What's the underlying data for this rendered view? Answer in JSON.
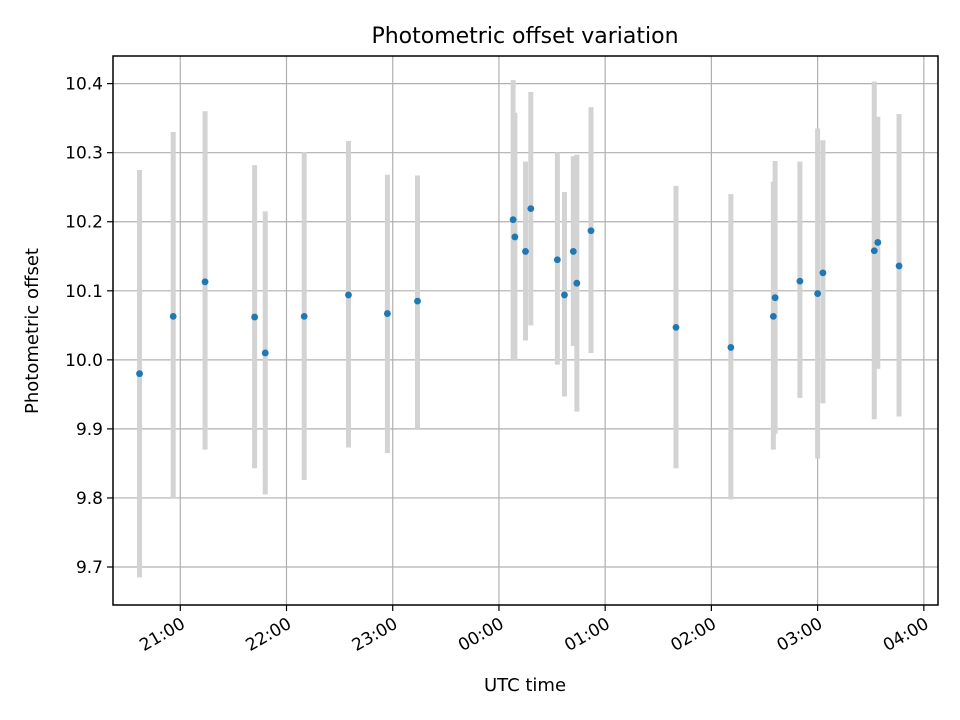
{
  "chart_data": {
    "type": "scatter",
    "title": "Photometric offset variation",
    "xlabel": "UTC time",
    "ylabel": "Photometric offset",
    "x_unit": "UTC time of day (spans midnight)",
    "xlim": [
      "20:22",
      "04:08"
    ],
    "ylim": [
      9.645,
      10.44
    ],
    "yticks": [
      "9.7",
      "9.8",
      "9.9",
      "10.0",
      "10.1",
      "10.2",
      "10.3",
      "10.4"
    ],
    "xticks": [
      "21:00",
      "22:00",
      "23:00",
      "00:00",
      "01:00",
      "02:00",
      "03:00",
      "04:00"
    ],
    "grid": true,
    "colors": {
      "point": "#1f77b4",
      "errorbar": "#d3d3d3",
      "grid": "#b0b0b0"
    },
    "series": [
      {
        "points": [
          {
            "x": "20:37",
            "y": 9.98,
            "lo": 9.685,
            "hi": 10.275
          },
          {
            "x": "20:56",
            "y": 10.063,
            "lo": 9.8,
            "hi": 10.33
          },
          {
            "x": "21:14",
            "y": 10.113,
            "lo": 9.87,
            "hi": 10.36
          },
          {
            "x": "21:42",
            "y": 10.062,
            "lo": 9.843,
            "hi": 10.282
          },
          {
            "x": "21:48",
            "y": 10.01,
            "lo": 9.805,
            "hi": 10.215
          },
          {
            "x": "22:10",
            "y": 10.063,
            "lo": 9.826,
            "hi": 10.301
          },
          {
            "x": "22:35",
            "y": 10.094,
            "lo": 9.873,
            "hi": 10.317
          },
          {
            "x": "22:57",
            "y": 10.067,
            "lo": 9.865,
            "hi": 10.268
          },
          {
            "x": "23:14",
            "y": 10.085,
            "lo": 9.9,
            "hi": 10.267
          },
          {
            "x": "00:08",
            "y": 10.203,
            "lo": 10.0,
            "hi": 10.405
          },
          {
            "x": "00:09",
            "y": 10.178,
            "lo": 10.0,
            "hi": 10.358
          },
          {
            "x": "00:15",
            "y": 10.157,
            "lo": 10.028,
            "hi": 10.287
          },
          {
            "x": "00:18",
            "y": 10.219,
            "lo": 10.05,
            "hi": 10.388
          },
          {
            "x": "00:33",
            "y": 10.145,
            "lo": 9.993,
            "hi": 10.3
          },
          {
            "x": "00:37",
            "y": 10.094,
            "lo": 9.947,
            "hi": 10.243
          },
          {
            "x": "00:42",
            "y": 10.157,
            "lo": 10.02,
            "hi": 10.295
          },
          {
            "x": "00:44",
            "y": 10.111,
            "lo": 9.925,
            "hi": 10.297
          },
          {
            "x": "00:52",
            "y": 10.187,
            "lo": 10.01,
            "hi": 10.366
          },
          {
            "x": "01:40",
            "y": 10.047,
            "lo": 9.843,
            "hi": 10.252
          },
          {
            "x": "02:11",
            "y": 10.018,
            "lo": 9.798,
            "hi": 10.24
          },
          {
            "x": "02:35",
            "y": 10.063,
            "lo": 9.87,
            "hi": 10.258
          },
          {
            "x": "02:36",
            "y": 10.09,
            "lo": 9.893,
            "hi": 10.288
          },
          {
            "x": "02:50",
            "y": 10.114,
            "lo": 9.945,
            "hi": 10.287
          },
          {
            "x": "03:00",
            "y": 10.096,
            "lo": 9.857,
            "hi": 10.335
          },
          {
            "x": "03:03",
            "y": 10.126,
            "lo": 9.937,
            "hi": 10.318
          },
          {
            "x": "03:32",
            "y": 10.158,
            "lo": 9.914,
            "hi": 10.403
          },
          {
            "x": "03:34",
            "y": 10.17,
            "lo": 9.987,
            "hi": 10.352
          },
          {
            "x": "03:46",
            "y": 10.136,
            "lo": 9.918,
            "hi": 10.356
          }
        ]
      }
    ]
  }
}
